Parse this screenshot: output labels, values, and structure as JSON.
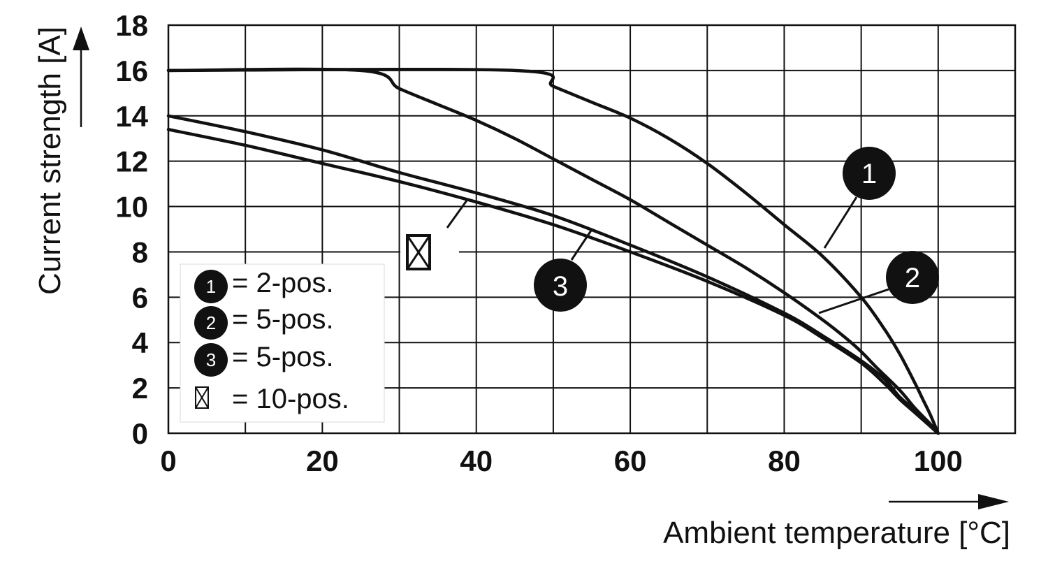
{
  "chart_data": {
    "type": "line",
    "xlabel": "Ambient temperature [°C]",
    "ylabel": "Current strength [A]",
    "xlim": [
      0,
      110
    ],
    "ylim": [
      0,
      18
    ],
    "xticks": [
      0,
      20,
      40,
      60,
      80,
      100
    ],
    "yticks": [
      0,
      2,
      4,
      6,
      8,
      10,
      12,
      14,
      16,
      18
    ],
    "grid": true,
    "series": [
      {
        "name": "2-pos.",
        "badge": "1",
        "x": [
          0,
          45,
          50,
          55,
          60,
          65,
          70,
          75,
          80,
          85,
          90,
          93,
          95,
          97,
          98,
          99,
          100
        ],
        "y": [
          16,
          16,
          15.3,
          14.6,
          13.9,
          13.0,
          11.9,
          10.6,
          9.2,
          7.8,
          6.0,
          4.6,
          3.5,
          2.2,
          1.5,
          0.8,
          0
        ]
      },
      {
        "name": "5-pos.",
        "badge": "2",
        "x": [
          0,
          25,
          30,
          35,
          40,
          45,
          50,
          55,
          60,
          65,
          70,
          75,
          80,
          85,
          88,
          90,
          92,
          95,
          97,
          99,
          100
        ],
        "y": [
          16,
          16,
          15.2,
          14.5,
          13.8,
          13.0,
          12.1,
          11.2,
          10.3,
          9.3,
          8.3,
          7.3,
          6.2,
          5.0,
          4.2,
          3.6,
          2.9,
          1.9,
          1.1,
          0.4,
          0
        ]
      },
      {
        "name": "5-pos.",
        "badge": "3",
        "x": [
          0,
          10,
          20,
          30,
          40,
          50,
          60,
          70,
          80,
          85,
          90,
          93,
          95,
          97,
          99,
          100
        ],
        "y": [
          13.4,
          12.7,
          11.9,
          11.1,
          10.2,
          9.2,
          8.0,
          6.7,
          5.2,
          4.2,
          3.1,
          2.2,
          1.5,
          0.9,
          0.3,
          0
        ]
      },
      {
        "name": "10-pos.",
        "badge": "⊠",
        "x": [
          0,
          10,
          20,
          30,
          40,
          50,
          60,
          70,
          80,
          85,
          90,
          93,
          95,
          97,
          99,
          100
        ],
        "y": [
          14.0,
          13.3,
          12.5,
          11.5,
          10.6,
          9.6,
          8.3,
          6.9,
          5.3,
          4.3,
          3.2,
          2.4,
          1.6,
          1.0,
          0.3,
          0
        ]
      }
    ],
    "legend": [
      {
        "badge": "1",
        "text": "= 2-pos."
      },
      {
        "badge": "2",
        "text": "= 5-pos."
      },
      {
        "badge": "3",
        "text": "= 5-pos."
      },
      {
        "badge": "⊠",
        "text": "= 10-pos."
      }
    ],
    "colors": {
      "line": "#111111",
      "grid": "#111111",
      "badge": "#111111"
    }
  }
}
